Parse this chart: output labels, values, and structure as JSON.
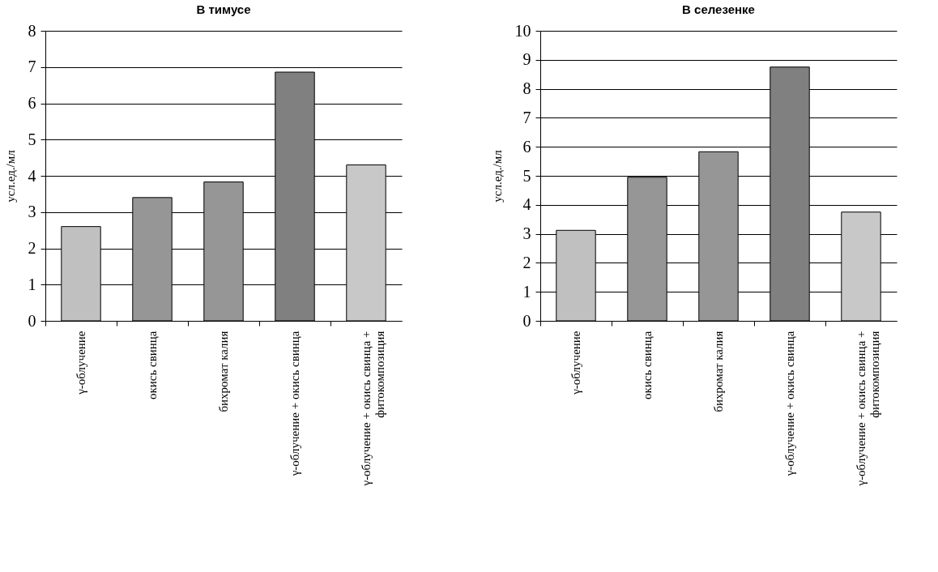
{
  "chart_data": [
    {
      "type": "bar",
      "title": "В тимусе",
      "ylabel": "усл.ед./мл",
      "categories": [
        "γ-облучение",
        "окись свинца",
        "бихромат калия",
        "γ-облучение + окись свинца",
        "γ-облучение + окись свинца + фитокомпозиция"
      ],
      "values": [
        2.6,
        3.4,
        3.83,
        6.86,
        4.3
      ],
      "colors": [
        "#c0c0c0",
        "#969696",
        "#969696",
        "#808080",
        "#c8c8c8"
      ],
      "ylim": [
        0,
        8
      ],
      "yticks": [
        0,
        1,
        2,
        3,
        4,
        5,
        6,
        7,
        8
      ],
      "grid": "y"
    },
    {
      "type": "bar",
      "title": "В селезенке",
      "ylabel": "усл.ед./мл",
      "categories": [
        "γ-облучение",
        "окись свинца",
        "бихромат калия",
        "γ-облучение + окись свинца",
        "γ-облучение + окись свинца + фитокомпозиция"
      ],
      "values": [
        3.12,
        4.95,
        5.83,
        8.75,
        3.75
      ],
      "colors": [
        "#c0c0c0",
        "#969696",
        "#969696",
        "#808080",
        "#c8c8c8"
      ],
      "ylim": [
        0,
        10
      ],
      "yticks": [
        0,
        1,
        2,
        3,
        4,
        5,
        6,
        7,
        8,
        9,
        10
      ],
      "grid": "y"
    }
  ]
}
